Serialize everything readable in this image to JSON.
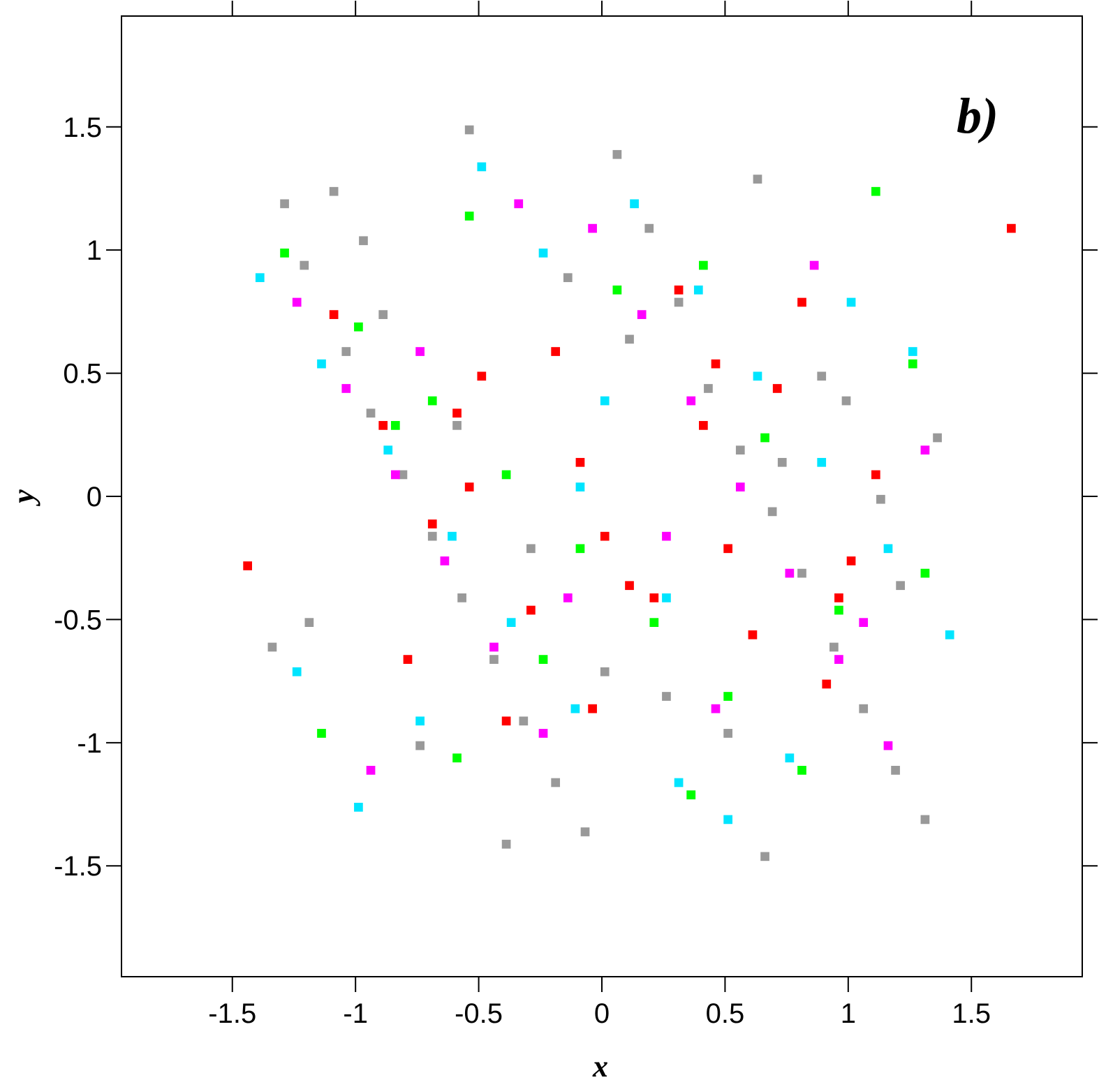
{
  "chart_data": {
    "type": "scatter",
    "panel_label": "b)",
    "xlabel": "x",
    "ylabel": "y",
    "xlim": [
      -1.95,
      1.95
    ],
    "ylim": [
      -1.95,
      1.95
    ],
    "x_ticks": [
      -1.5,
      -1,
      -0.5,
      0,
      0.5,
      1,
      1.5
    ],
    "x_tick_labels": [
      "-1.5",
      "-1",
      "-0.5",
      "0",
      "0.5",
      "1",
      "1.5"
    ],
    "y_ticks": [
      -1.5,
      -1,
      -0.5,
      0,
      0.5,
      1,
      1.5
    ],
    "y_tick_labels": [
      "-1.5",
      "-1",
      "-0.5",
      "0",
      "0.5",
      "1",
      "1.5"
    ],
    "grid": false,
    "legend": "none",
    "pixel_size": 0.012,
    "series": [
      {
        "color": "#999999",
        "x": [
          -1.3,
          -1.22,
          -1.05,
          -0.95,
          -0.82,
          -0.7,
          -0.58,
          -0.45,
          -0.33,
          -0.2,
          -0.08,
          0.05,
          0.18,
          0.3,
          0.42,
          0.55,
          0.68,
          0.8,
          0.93,
          1.05,
          1.18,
          1.3,
          -1.1,
          -0.9,
          -0.6,
          -0.3,
          0.0,
          0.35,
          0.62,
          0.88,
          1.12,
          -1.2,
          -0.75,
          -0.15,
          0.25,
          0.72,
          1.2,
          -0.98,
          -0.4,
          0.1,
          0.5,
          0.98,
          -1.35,
          -0.55,
          0.65,
          1.35
        ],
        "y": [
          1.2,
          0.95,
          0.6,
          0.35,
          0.1,
          -0.15,
          -0.4,
          -0.65,
          -0.9,
          -1.15,
          -1.35,
          1.4,
          1.1,
          0.8,
          0.45,
          0.2,
          -0.05,
          -0.3,
          -0.6,
          -0.85,
          -1.1,
          -1.3,
          1.25,
          0.75,
          0.3,
          -0.2,
          -0.7,
          -1.2,
          1.3,
          0.5,
          0.0,
          -0.5,
          -1.0,
          0.9,
          -0.8,
          0.15,
          -0.35,
          1.05,
          -1.4,
          0.65,
          -0.95,
          0.4,
          -0.6,
          1.5,
          -1.45,
          0.25
        ]
      },
      {
        "color": "#00e5ff",
        "x": [
          -1.4,
          -1.15,
          -0.88,
          -0.62,
          -0.38,
          -0.12,
          0.12,
          0.38,
          0.62,
          0.88,
          1.15,
          1.4,
          -1.0,
          -0.5,
          0.0,
          0.5,
          1.0,
          -0.75,
          -0.25,
          0.25,
          0.75,
          -1.25,
          1.25,
          -0.1,
          0.3
        ],
        "y": [
          0.9,
          0.55,
          0.2,
          -0.15,
          -0.5,
          -0.85,
          1.2,
          0.85,
          0.5,
          0.15,
          -0.2,
          -0.55,
          -1.25,
          1.35,
          0.4,
          -1.3,
          0.8,
          -0.9,
          1.0,
          -0.4,
          -1.05,
          -0.7,
          0.6,
          0.05,
          -1.15
        ]
      },
      {
        "color": "#00ff00",
        "x": [
          -1.3,
          -1.0,
          -0.7,
          -0.4,
          -0.1,
          0.2,
          0.5,
          0.8,
          1.1,
          1.3,
          -1.15,
          -0.85,
          -0.55,
          -0.25,
          0.05,
          0.35,
          0.65,
          0.95,
          1.25,
          -0.6,
          0.4
        ],
        "y": [
          1.0,
          0.7,
          0.4,
          0.1,
          -0.2,
          -0.5,
          -0.8,
          -1.1,
          1.25,
          -0.3,
          -0.95,
          0.3,
          1.15,
          -0.65,
          0.85,
          -1.2,
          0.25,
          -0.45,
          0.55,
          -1.05,
          0.95
        ]
      },
      {
        "color": "#ff00ff",
        "x": [
          -1.25,
          -1.05,
          -0.85,
          -0.65,
          -0.45,
          -0.25,
          -0.05,
          0.15,
          0.35,
          0.55,
          0.75,
          0.95,
          1.15,
          1.3,
          -0.95,
          -0.35,
          0.25,
          0.85,
          -0.75,
          0.45,
          1.05,
          -0.15
        ],
        "y": [
          0.8,
          0.45,
          0.1,
          -0.25,
          -0.6,
          -0.95,
          1.1,
          0.75,
          0.4,
          0.05,
          -0.3,
          -0.65,
          -1.0,
          0.2,
          -1.1,
          1.2,
          -0.15,
          0.95,
          0.6,
          -0.85,
          -0.5,
          -0.4
        ]
      },
      {
        "color": "#ff0000",
        "x": [
          -1.1,
          -0.9,
          -0.7,
          -0.5,
          -0.3,
          -0.1,
          0.1,
          0.3,
          0.5,
          0.7,
          0.9,
          1.1,
          -0.8,
          -0.6,
          -0.4,
          -0.2,
          0.0,
          0.2,
          0.4,
          0.6,
          0.8,
          1.0,
          -0.55,
          -0.05,
          0.45,
          0.95,
          -1.45,
          1.65
        ],
        "y": [
          0.75,
          0.3,
          -0.1,
          0.5,
          -0.45,
          0.15,
          -0.35,
          0.85,
          -0.2,
          0.45,
          -0.75,
          0.1,
          -0.65,
          0.35,
          -0.9,
          0.6,
          -0.15,
          -0.4,
          0.3,
          -0.55,
          0.8,
          -0.25,
          0.05,
          -0.85,
          0.55,
          -0.4,
          -0.27,
          1.1
        ]
      }
    ]
  }
}
